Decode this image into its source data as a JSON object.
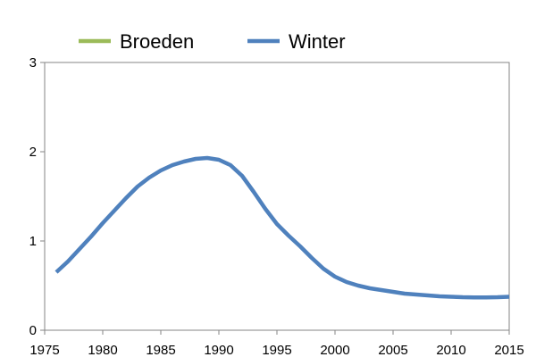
{
  "chart_data": {
    "type": "line",
    "title": "",
    "xlabel": "",
    "ylabel": "",
    "xlim": [
      1975,
      2015
    ],
    "ylim": [
      0,
      3
    ],
    "x_ticks": [
      1975,
      1980,
      1985,
      1990,
      1995,
      2000,
      2005,
      2010,
      2015
    ],
    "y_ticks": [
      0,
      1,
      2,
      3
    ],
    "grid": false,
    "legend_position": "top",
    "series": [
      {
        "name": "Broeden",
        "color": "#9bbb59",
        "x": [],
        "y": []
      },
      {
        "name": "Winter",
        "color": "#4f81bd",
        "x": [
          1976,
          1977,
          1978,
          1979,
          1980,
          1981,
          1982,
          1983,
          1984,
          1985,
          1986,
          1987,
          1988,
          1989,
          1990,
          1991,
          1992,
          1993,
          1994,
          1995,
          1996,
          1997,
          1998,
          1999,
          2000,
          2001,
          2002,
          2003,
          2004,
          2005,
          2006,
          2007,
          2008,
          2009,
          2010,
          2011,
          2012,
          2013,
          2014,
          2015
        ],
        "y": [
          0.65,
          0.77,
          0.91,
          1.05,
          1.2,
          1.34,
          1.48,
          1.61,
          1.71,
          1.79,
          1.85,
          1.89,
          1.92,
          1.93,
          1.91,
          1.85,
          1.73,
          1.55,
          1.36,
          1.19,
          1.06,
          0.94,
          0.81,
          0.69,
          0.6,
          0.54,
          0.5,
          0.47,
          0.45,
          0.43,
          0.41,
          0.4,
          0.39,
          0.38,
          0.375,
          0.37,
          0.368,
          0.368,
          0.37,
          0.375
        ]
      }
    ]
  }
}
